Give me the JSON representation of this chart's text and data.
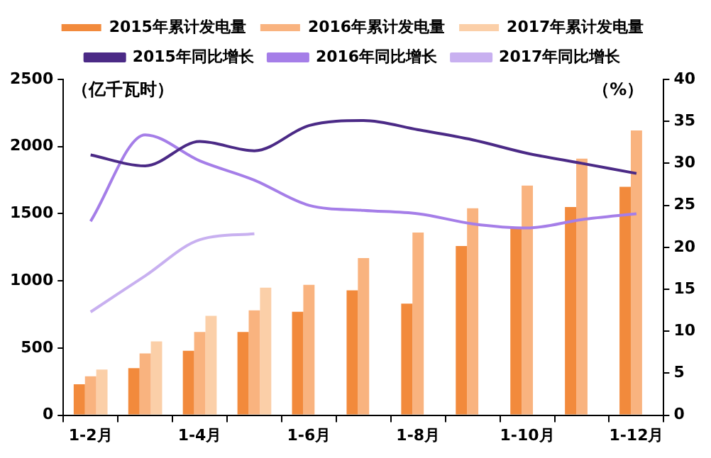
{
  "chart_data": {
    "type": "bar",
    "ylabel": "（亿千瓦时）",
    "y2label": "（%）",
    "categories": [
      "1-2月",
      null,
      "1-4月",
      null,
      "1-6月",
      null,
      "1-8月",
      null,
      "1-10月",
      null,
      "1-12月"
    ],
    "series": [
      {
        "name": "2015年累计发电量",
        "color": "#f28a3c",
        "values": [
          230,
          350,
          480,
          620,
          770,
          930,
          830,
          1260,
          1390,
          1550,
          1700
        ]
      },
      {
        "name": "2016年累计发电量",
        "color": "#f9b37f",
        "values": [
          290,
          460,
          620,
          780,
          970,
          1170,
          1360,
          1540,
          1710,
          1910,
          2120
        ]
      },
      {
        "name": "2017年累计发电量",
        "color": "#fbcfa8",
        "values": [
          340,
          550,
          740,
          950,
          null,
          null,
          null,
          null,
          null,
          null,
          null
        ]
      },
      {
        "name": "2015年同比增长",
        "type": "line",
        "axis": "y2",
        "color": "#4b2a86",
        "values": [
          31.0,
          29.7,
          32.6,
          31.5,
          34.5,
          35.1,
          34.0,
          32.8,
          31.2,
          30.0,
          28.8
        ]
      },
      {
        "name": "2016年同比增长",
        "type": "line",
        "axis": "y2",
        "color": "#a57ee8",
        "values": [
          23.1,
          33.4,
          30.3,
          28.0,
          25.0,
          24.4,
          24.0,
          22.8,
          22.3,
          23.3,
          24.0
        ]
      },
      {
        "name": "2017年同比增长",
        "type": "line",
        "axis": "y2",
        "color": "#c8b0f0",
        "values": [
          12.3,
          16.6,
          20.9,
          21.6,
          null,
          null,
          null,
          null,
          null,
          null,
          null
        ]
      }
    ],
    "ylim": [
      0,
      2500
    ],
    "yticks": [
      0,
      500,
      1000,
      1500,
      2000,
      2500
    ],
    "y2lim": [
      0,
      40
    ],
    "y2ticks": [
      0,
      5,
      10,
      15,
      20,
      25,
      30,
      35,
      40
    ],
    "grid": false,
    "legend": "top",
    "marker": "none",
    "line_style": "solid"
  }
}
